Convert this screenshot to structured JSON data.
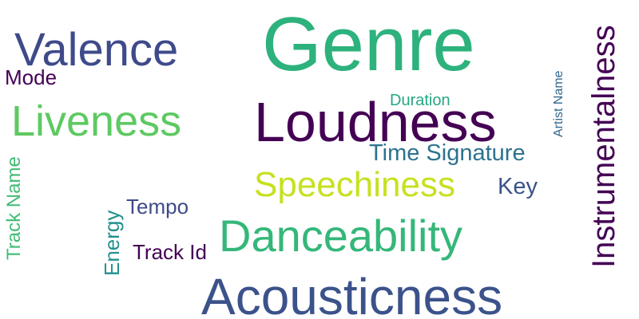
{
  "words": [
    {
      "text": "Genre",
      "color": "#2db27d"
    },
    {
      "text": "Valence",
      "color": "#3e4a89"
    },
    {
      "text": "Mode",
      "color": "#440154"
    },
    {
      "text": "Liveness",
      "color": "#5ec962"
    },
    {
      "text": "Loudness",
      "color": "#440154"
    },
    {
      "text": "Duration",
      "color": "#26a784"
    },
    {
      "text": "Time Signature",
      "color": "#2c728e"
    },
    {
      "text": "Speechiness",
      "color": "#c8e020"
    },
    {
      "text": "Key",
      "color": "#3b528b"
    },
    {
      "text": "Tempo",
      "color": "#3e4a89"
    },
    {
      "text": "Danceability",
      "color": "#35b779"
    },
    {
      "text": "Track Id",
      "color": "#440154"
    },
    {
      "text": "Acousticness",
      "color": "#3b528b"
    },
    {
      "text": "Track Name",
      "color": "#3fbc73"
    },
    {
      "text": "Energy",
      "color": "#21918c"
    },
    {
      "text": "Artist Name",
      "color": "#31688e"
    },
    {
      "text": "Instrumentalness",
      "color": "#440154"
    }
  ]
}
